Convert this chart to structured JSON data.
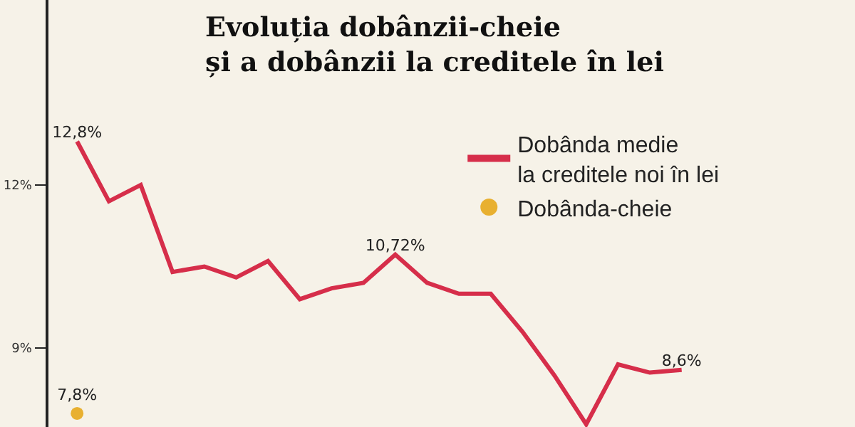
{
  "chart_data": {
    "type": "line",
    "title": "Evoluția dobânzii-cheie\nși a dobânzii la creditele în lei",
    "categories": [
      null,
      null,
      null,
      null,
      null,
      null,
      null,
      null,
      null,
      null,
      null,
      null,
      null,
      null,
      null,
      null,
      null,
      null,
      null,
      null
    ],
    "series": [
      {
        "name": "Dobânda medie\nla creditele noi în lei",
        "color": "#d62e4a",
        "marker": "none",
        "values": [
          12.8,
          11.7,
          12.0,
          10.4,
          10.5,
          10.3,
          10.6,
          9.9,
          10.1,
          10.2,
          10.72,
          10.2,
          10.0,
          10.0,
          9.3,
          8.5,
          7.6,
          8.7,
          8.55,
          8.6
        ],
        "value_labels": [
          "12,8%",
          null,
          null,
          null,
          null,
          null,
          null,
          null,
          null,
          null,
          "10,72%",
          null,
          null,
          null,
          null,
          null,
          null,
          null,
          null,
          "8,6%"
        ]
      },
      {
        "name": "Dobânda-cheie",
        "color": "#e8b030",
        "marker": "circle",
        "values": [
          7.8,
          null,
          null,
          null,
          null,
          null,
          null,
          null,
          null,
          null,
          null,
          null,
          null,
          null,
          null,
          null,
          null,
          null,
          null,
          null
        ],
        "value_labels": [
          "7,8%",
          null,
          null,
          null,
          null,
          null,
          null,
          null,
          null,
          null,
          null,
          null,
          null,
          null,
          null,
          null,
          null,
          null,
          null,
          null
        ]
      }
    ],
    "ylim": [
      7.55,
      15.4
    ],
    "yticks": [
      {
        "value": 12,
        "label": "12%"
      },
      {
        "value": 9,
        "label": "9%"
      }
    ],
    "tick_labels": "y",
    "grid": false,
    "legend": "top right"
  }
}
